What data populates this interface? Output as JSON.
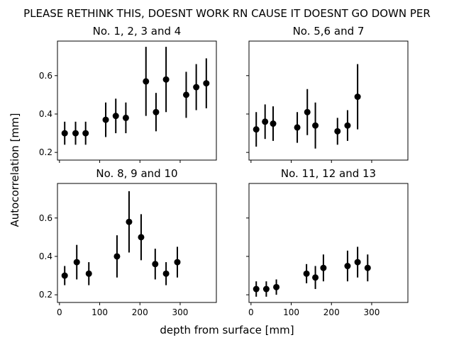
{
  "figure": {
    "suptitle": "PLEASE RETHINK THIS, DOESNT WORK RN CAUSE IT DOESNT GO DOWN PER",
    "xlabel": "depth from surface [mm]",
    "ylabel": "Autocorrelation [mm]"
  },
  "chart_data": [
    {
      "type": "scatter",
      "title": "No. 1, 2, 3 and 4",
      "xlim": [
        -5,
        390
      ],
      "ylim": [
        0.16,
        0.78
      ],
      "x_ticks": [
        0,
        100,
        200,
        300
      ],
      "y_ticks": [
        0.2,
        0.4,
        0.6
      ],
      "y_tick_labels": [
        "0.2",
        "0.4",
        "0.6"
      ],
      "x_tick_labels": [],
      "x": [
        13,
        40,
        65,
        115,
        140,
        165,
        215,
        240,
        265,
        315,
        340,
        365
      ],
      "y": [
        0.3,
        0.3,
        0.3,
        0.37,
        0.39,
        0.38,
        0.57,
        0.41,
        0.58,
        0.5,
        0.54,
        0.56
      ],
      "yerr": [
        0.06,
        0.06,
        0.06,
        0.09,
        0.09,
        0.08,
        0.18,
        0.1,
        0.17,
        0.12,
        0.12,
        0.13
      ]
    },
    {
      "type": "scatter",
      "title": "No. 5,6 and 7",
      "xlim": [
        -5,
        390
      ],
      "ylim": [
        0.16,
        0.78
      ],
      "x_ticks": [
        0,
        100,
        200,
        300
      ],
      "y_ticks": [
        0.2,
        0.4,
        0.6
      ],
      "y_tick_labels": [],
      "x_tick_labels": [],
      "x": [
        13,
        35,
        55,
        115,
        140,
        160,
        215,
        240,
        265
      ],
      "y": [
        0.32,
        0.36,
        0.35,
        0.33,
        0.41,
        0.34,
        0.31,
        0.34,
        0.49
      ],
      "yerr": [
        0.09,
        0.09,
        0.09,
        0.08,
        0.12,
        0.12,
        0.07,
        0.08,
        0.17
      ]
    },
    {
      "type": "scatter",
      "title": "No. 8, 9 and 10",
      "xlim": [
        -5,
        390
      ],
      "ylim": [
        0.16,
        0.78
      ],
      "x_ticks": [
        0,
        100,
        200,
        300
      ],
      "y_ticks": [
        0.2,
        0.4,
        0.6
      ],
      "y_tick_labels": [
        "0.2",
        "0.4",
        "0.6"
      ],
      "x_tick_labels": [
        "0",
        "100",
        "200",
        "300"
      ],
      "x": [
        13,
        43,
        73,
        143,
        173,
        203,
        238,
        265,
        293
      ],
      "y": [
        0.3,
        0.37,
        0.31,
        0.4,
        0.58,
        0.5,
        0.36,
        0.31,
        0.37
      ],
      "yerr": [
        0.05,
        0.09,
        0.06,
        0.11,
        0.16,
        0.12,
        0.08,
        0.06,
        0.08
      ]
    },
    {
      "type": "scatter",
      "title": "No. 11, 12 and 13",
      "xlim": [
        -5,
        390
      ],
      "ylim": [
        0.16,
        0.78
      ],
      "x_ticks": [
        0,
        100,
        200,
        300
      ],
      "y_ticks": [
        0.2,
        0.4,
        0.6
      ],
      "y_tick_labels": [],
      "x_tick_labels": [
        "0",
        "100",
        "200",
        "300"
      ],
      "x": [
        13,
        38,
        63,
        138,
        160,
        180,
        240,
        265,
        290
      ],
      "y": [
        0.23,
        0.23,
        0.24,
        0.31,
        0.29,
        0.34,
        0.35,
        0.37,
        0.34
      ],
      "yerr": [
        0.04,
        0.04,
        0.04,
        0.05,
        0.06,
        0.07,
        0.08,
        0.08,
        0.07
      ]
    }
  ]
}
